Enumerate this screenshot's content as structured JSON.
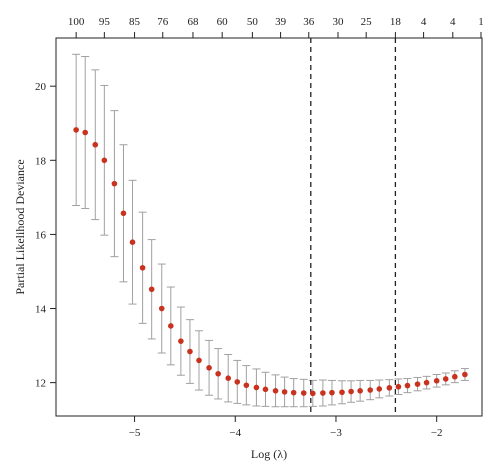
{
  "chart_data": {
    "type": "scatter",
    "title": "",
    "xlabel": "Log (λ)",
    "ylabel": "Partial Likelihood Deviance",
    "xlim": [
      -5.78,
      -1.55
    ],
    "ylim": [
      11.1,
      21.3
    ],
    "x_ticks": [
      -5,
      -4,
      -3,
      -2
    ],
    "x_tick_labels": [
      "−5",
      "−4",
      "−3",
      "−2"
    ],
    "y_ticks": [
      12,
      14,
      16,
      18,
      20
    ],
    "y_tick_labels": [
      "12",
      "14",
      "16",
      "18",
      "20"
    ],
    "top_ticks": [
      {
        "x": -5.58,
        "label": "100"
      },
      {
        "x": -5.3,
        "label": "95"
      },
      {
        "x": -5.0,
        "label": "85"
      },
      {
        "x": -4.72,
        "label": "76"
      },
      {
        "x": -4.42,
        "label": "68"
      },
      {
        "x": -4.13,
        "label": "60"
      },
      {
        "x": -3.83,
        "label": "50"
      },
      {
        "x": -3.55,
        "label": "39"
      },
      {
        "x": -3.27,
        "label": "36"
      },
      {
        "x": -2.98,
        "label": "30"
      },
      {
        "x": -2.7,
        "label": "25"
      },
      {
        "x": -2.41,
        "label": "18"
      },
      {
        "x": -2.13,
        "label": "4"
      },
      {
        "x": -1.84,
        "label": "4"
      },
      {
        "x": -1.56,
        "label": "1"
      }
    ],
    "vlines": [
      -3.25,
      -2.41
    ],
    "point_color": "#c8321e",
    "errorbar_color": "#a0a0a0",
    "series": [
      {
        "x": [
          -5.58,
          -5.49,
          -5.39,
          -5.3,
          -5.2,
          -5.11,
          -5.02,
          -4.92,
          -4.83,
          -4.73,
          -4.64,
          -4.54,
          -4.45,
          -4.36,
          -4.26,
          -4.17,
          -4.07,
          -3.98,
          -3.89,
          -3.79,
          -3.7,
          -3.6,
          -3.51,
          -3.42,
          -3.32,
          -3.23,
          -3.13,
          -3.04,
          -2.94,
          -2.85,
          -2.76,
          -2.66,
          -2.57,
          -2.47,
          -2.38,
          -2.29,
          -2.19,
          -2.1,
          -2.0,
          -1.91,
          -1.82,
          -1.72
        ],
        "y": [
          18.82,
          18.75,
          18.42,
          18.0,
          17.37,
          16.57,
          15.79,
          15.1,
          14.52,
          14.0,
          13.53,
          13.12,
          12.84,
          12.6,
          12.4,
          12.24,
          12.12,
          12.02,
          11.93,
          11.87,
          11.82,
          11.78,
          11.75,
          11.73,
          11.72,
          11.71,
          11.72,
          11.73,
          11.74,
          11.76,
          11.78,
          11.8,
          11.83,
          11.86,
          11.89,
          11.92,
          11.96,
          12.0,
          12.05,
          12.1,
          12.16,
          12.22
        ],
        "lower": [
          16.78,
          16.7,
          16.4,
          15.98,
          15.4,
          14.72,
          14.12,
          13.6,
          13.18,
          12.8,
          12.48,
          12.2,
          11.98,
          11.8,
          11.66,
          11.56,
          11.48,
          11.44,
          11.4,
          11.37,
          11.36,
          11.35,
          11.35,
          11.35,
          11.35,
          11.36,
          11.37,
          11.4,
          11.43,
          11.47,
          11.5,
          11.54,
          11.59,
          11.64,
          11.68,
          11.73,
          11.78,
          11.83,
          11.88,
          11.94,
          12.0,
          12.06
        ],
        "upper": [
          20.86,
          20.8,
          20.44,
          20.02,
          19.34,
          18.42,
          17.46,
          16.6,
          15.86,
          15.2,
          14.58,
          14.04,
          13.7,
          13.4,
          13.14,
          12.92,
          12.76,
          12.6,
          12.46,
          12.37,
          12.28,
          12.21,
          12.15,
          12.11,
          12.09,
          12.06,
          12.07,
          12.06,
          12.05,
          12.05,
          12.06,
          12.06,
          12.07,
          12.08,
          12.1,
          12.11,
          12.14,
          12.17,
          12.22,
          12.26,
          12.32,
          12.38
        ]
      }
    ]
  }
}
